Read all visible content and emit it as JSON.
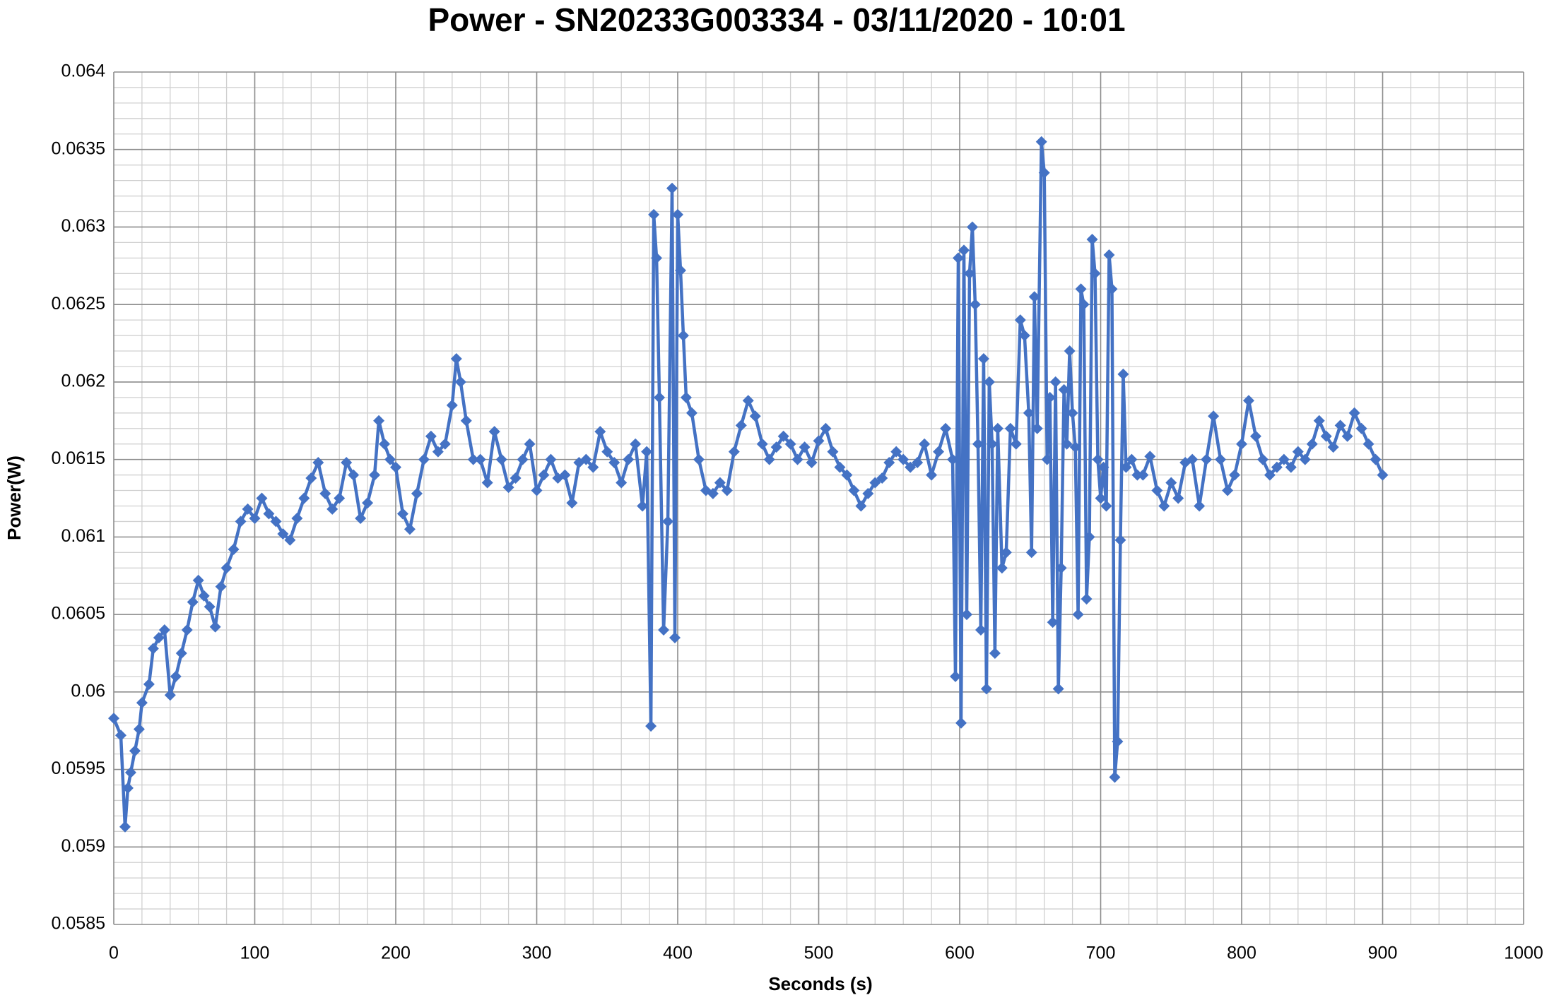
{
  "chart_data": {
    "type": "line",
    "title": "Power - SN20233G003334 - 03/11/2020 - 10:01",
    "x_label": "Seconds (s)",
    "y_label": "Power(W)",
    "xlim": [
      0,
      1000
    ],
    "xticks": [
      0,
      100,
      200,
      300,
      400,
      500,
      600,
      700,
      800,
      900,
      1000
    ],
    "ylim": [
      0.0585,
      0.064
    ],
    "yticks": [
      0.0585,
      0.059,
      0.0595,
      0.06,
      0.0605,
      0.061,
      0.0615,
      0.062,
      0.0625,
      0.063,
      0.0635,
      0.064
    ],
    "grid": true,
    "minor_grid": true,
    "color": "#4472c4",
    "marker": "diamond",
    "x": [
      0,
      5,
      8,
      10,
      12,
      15,
      18,
      20,
      25,
      28,
      32,
      36,
      40,
      44,
      48,
      52,
      56,
      60,
      64,
      68,
      72,
      76,
      80,
      85,
      90,
      95,
      100,
      105,
      110,
      115,
      120,
      125,
      130,
      135,
      140,
      145,
      150,
      155,
      160,
      165,
      170,
      175,
      180,
      185,
      188,
      192,
      196,
      200,
      205,
      210,
      215,
      220,
      225,
      230,
      235,
      240,
      243,
      246,
      250,
      255,
      260,
      265,
      270,
      275,
      280,
      285,
      290,
      295,
      300,
      305,
      310,
      315,
      320,
      325,
      330,
      335,
      340,
      345,
      350,
      355,
      360,
      365,
      370,
      375,
      378,
      381,
      383,
      385,
      387,
      390,
      393,
      396,
      398,
      400,
      402,
      404,
      406,
      410,
      415,
      420,
      425,
      430,
      435,
      440,
      445,
      450,
      455,
      460,
      465,
      470,
      475,
      480,
      485,
      490,
      495,
      500,
      505,
      510,
      515,
      520,
      525,
      530,
      535,
      540,
      545,
      550,
      555,
      560,
      565,
      570,
      575,
      580,
      585,
      590,
      595,
      597,
      599,
      601,
      603,
      605,
      607,
      609,
      611,
      613,
      615,
      617,
      619,
      621,
      623,
      625,
      627,
      630,
      633,
      636,
      640,
      643,
      646,
      649,
      651,
      653,
      655,
      658,
      660,
      662,
      664,
      666,
      668,
      670,
      672,
      674,
      676,
      678,
      680,
      682,
      684,
      686,
      688,
      690,
      692,
      694,
      696,
      698,
      700,
      702,
      704,
      706,
      708,
      710,
      712,
      714,
      716,
      718,
      722,
      726,
      730,
      735,
      740,
      745,
      750,
      755,
      760,
      765,
      770,
      775,
      780,
      785,
      790,
      795,
      800,
      805,
      810,
      815,
      820,
      825,
      830,
      835,
      840,
      845,
      850,
      855,
      860,
      865,
      870,
      875,
      880,
      885,
      890,
      895,
      900
    ],
    "values": [
      0.05983,
      0.05972,
      0.05913,
      0.05938,
      0.05948,
      0.05962,
      0.05976,
      0.05993,
      0.06005,
      0.06028,
      0.06035,
      0.0604,
      0.05998,
      0.0601,
      0.06025,
      0.0604,
      0.06058,
      0.06072,
      0.06062,
      0.06055,
      0.06042,
      0.06068,
      0.0608,
      0.06092,
      0.0611,
      0.06118,
      0.06112,
      0.06125,
      0.06115,
      0.0611,
      0.06102,
      0.06098,
      0.06112,
      0.06125,
      0.06138,
      0.06148,
      0.06128,
      0.06118,
      0.06125,
      0.06148,
      0.0614,
      0.06112,
      0.06122,
      0.0614,
      0.06175,
      0.0616,
      0.0615,
      0.06145,
      0.06115,
      0.06105,
      0.06128,
      0.0615,
      0.06165,
      0.06155,
      0.0616,
      0.06185,
      0.06215,
      0.062,
      0.06175,
      0.0615,
      0.0615,
      0.06135,
      0.06168,
      0.0615,
      0.06132,
      0.06138,
      0.0615,
      0.0616,
      0.0613,
      0.0614,
      0.0615,
      0.06138,
      0.0614,
      0.06122,
      0.06148,
      0.0615,
      0.06145,
      0.06168,
      0.06155,
      0.06148,
      0.06135,
      0.0615,
      0.0616,
      0.0612,
      0.06155,
      0.05978,
      0.06308,
      0.0628,
      0.0619,
      0.0604,
      0.0611,
      0.06325,
      0.06035,
      0.06308,
      0.06272,
      0.0623,
      0.0619,
      0.0618,
      0.0615,
      0.0613,
      0.06128,
      0.06135,
      0.0613,
      0.06155,
      0.06172,
      0.06188,
      0.06178,
      0.0616,
      0.0615,
      0.06158,
      0.06165,
      0.0616,
      0.0615,
      0.06158,
      0.06148,
      0.06162,
      0.0617,
      0.06155,
      0.06145,
      0.0614,
      0.0613,
      0.0612,
      0.06128,
      0.06135,
      0.06138,
      0.06148,
      0.06155,
      0.0615,
      0.06145,
      0.06148,
      0.0616,
      0.0614,
      0.06155,
      0.0617,
      0.0615,
      0.0601,
      0.0628,
      0.0598,
      0.06285,
      0.0605,
      0.0627,
      0.063,
      0.0625,
      0.0616,
      0.0604,
      0.06215,
      0.06002,
      0.062,
      0.0616,
      0.06025,
      0.0617,
      0.0608,
      0.0609,
      0.0617,
      0.0616,
      0.0624,
      0.0623,
      0.0618,
      0.0609,
      0.06255,
      0.0617,
      0.06355,
      0.06335,
      0.0615,
      0.0619,
      0.06045,
      0.062,
      0.06002,
      0.0608,
      0.06195,
      0.0616,
      0.0622,
      0.0618,
      0.06158,
      0.0605,
      0.0626,
      0.0625,
      0.0606,
      0.061,
      0.06292,
      0.0627,
      0.0615,
      0.06125,
      0.06145,
      0.0612,
      0.06282,
      0.0626,
      0.05945,
      0.05968,
      0.06098,
      0.06205,
      0.06145,
      0.0615,
      0.0614,
      0.0614,
      0.06152,
      0.0613,
      0.0612,
      0.06135,
      0.06125,
      0.06148,
      0.0615,
      0.0612,
      0.0615,
      0.06178,
      0.0615,
      0.0613,
      0.0614,
      0.0616,
      0.06188,
      0.06165,
      0.0615,
      0.0614,
      0.06145,
      0.0615,
      0.06145,
      0.06155,
      0.0615,
      0.0616,
      0.06175,
      0.06165,
      0.06158,
      0.06172,
      0.06165,
      0.0618,
      0.0617,
      0.0616,
      0.0615,
      0.0614
    ]
  }
}
